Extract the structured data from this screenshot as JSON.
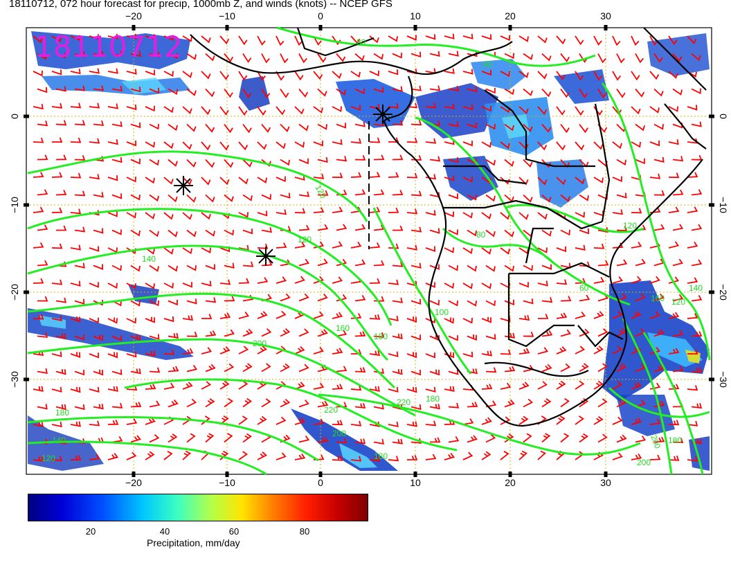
{
  "header": {
    "title": "18110712, 072 hour forecast for precip, 1000mb Z, and winds (knots) -- NCEP GFS"
  },
  "stamp": {
    "text": "18110712",
    "color": "#e020e0"
  },
  "axes": {
    "top_lon_labels": [
      "−20",
      "−10",
      "0",
      "10",
      "20",
      "30"
    ],
    "bottom_lon_labels": [
      "−20",
      "−10",
      "0",
      "10",
      "20",
      "30"
    ],
    "left_lat_labels": [
      "0",
      "−10",
      "−20",
      "−30"
    ],
    "right_lat_labels": [
      "0",
      "−10",
      "−20",
      "−30"
    ]
  },
  "contour_labels": [
    "120",
    "120",
    "140",
    "160",
    "180",
    "180",
    "200",
    "220",
    "220",
    "200",
    "180",
    "180",
    "200",
    "180",
    "160",
    "140",
    "120",
    "100",
    "80",
    "60",
    "80",
    "120",
    "80",
    "120",
    "140",
    "200"
  ],
  "colorbar": {
    "ticks": [
      "20",
      "40",
      "60",
      "80"
    ],
    "label": "Precipitation, mm/day"
  },
  "colors": {
    "wind_barbs": "#ff0000",
    "contours": "#22ee22",
    "grid": "#d4b000",
    "coastline": "#000000"
  }
}
